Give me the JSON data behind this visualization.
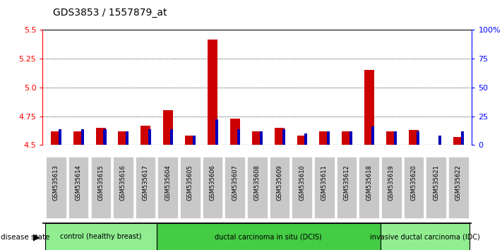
{
  "title": "GDS3853 / 1557879_at",
  "samples": [
    "GSM535613",
    "GSM535614",
    "GSM535615",
    "GSM535616",
    "GSM535617",
    "GSM535604",
    "GSM535605",
    "GSM535606",
    "GSM535607",
    "GSM535608",
    "GSM535609",
    "GSM535610",
    "GSM535611",
    "GSM535612",
    "GSM535618",
    "GSM535619",
    "GSM535620",
    "GSM535621",
    "GSM535622"
  ],
  "red_values": [
    4.62,
    4.62,
    4.65,
    4.62,
    4.67,
    4.8,
    4.58,
    5.42,
    4.73,
    4.62,
    4.65,
    4.58,
    4.62,
    4.62,
    5.15,
    4.62,
    4.63,
    4.5,
    4.57
  ],
  "blue_values": [
    14,
    14,
    14,
    12,
    14,
    14,
    8,
    22,
    14,
    12,
    14,
    10,
    12,
    12,
    16,
    12,
    12,
    8,
    12
  ],
  "ylim_left": [
    4.5,
    5.5
  ],
  "ylim_right": [
    0,
    100
  ],
  "yticks_left": [
    4.5,
    4.75,
    5.0,
    5.25,
    5.5
  ],
  "yticks_right": [
    0,
    25,
    50,
    75,
    100
  ],
  "ytick_labels_right": [
    "0",
    "25",
    "50",
    "75",
    "100%"
  ],
  "groups": [
    {
      "label": "control (healthy breast)",
      "start": 0,
      "end": 5,
      "color": "#90EE90"
    },
    {
      "label": "ductal carcinoma in situ (DCIS)",
      "start": 5,
      "end": 15,
      "color": "#44CC44"
    },
    {
      "label": "invasive ductal carcinoma (IDC)",
      "start": 15,
      "end": 19,
      "color": "#90EE90"
    }
  ],
  "red_color": "#CC0000",
  "blue_color": "#0000BB",
  "baseline": 4.5,
  "bg_color": "#FFFFFF",
  "tick_bg_color": "#C8C8C8"
}
